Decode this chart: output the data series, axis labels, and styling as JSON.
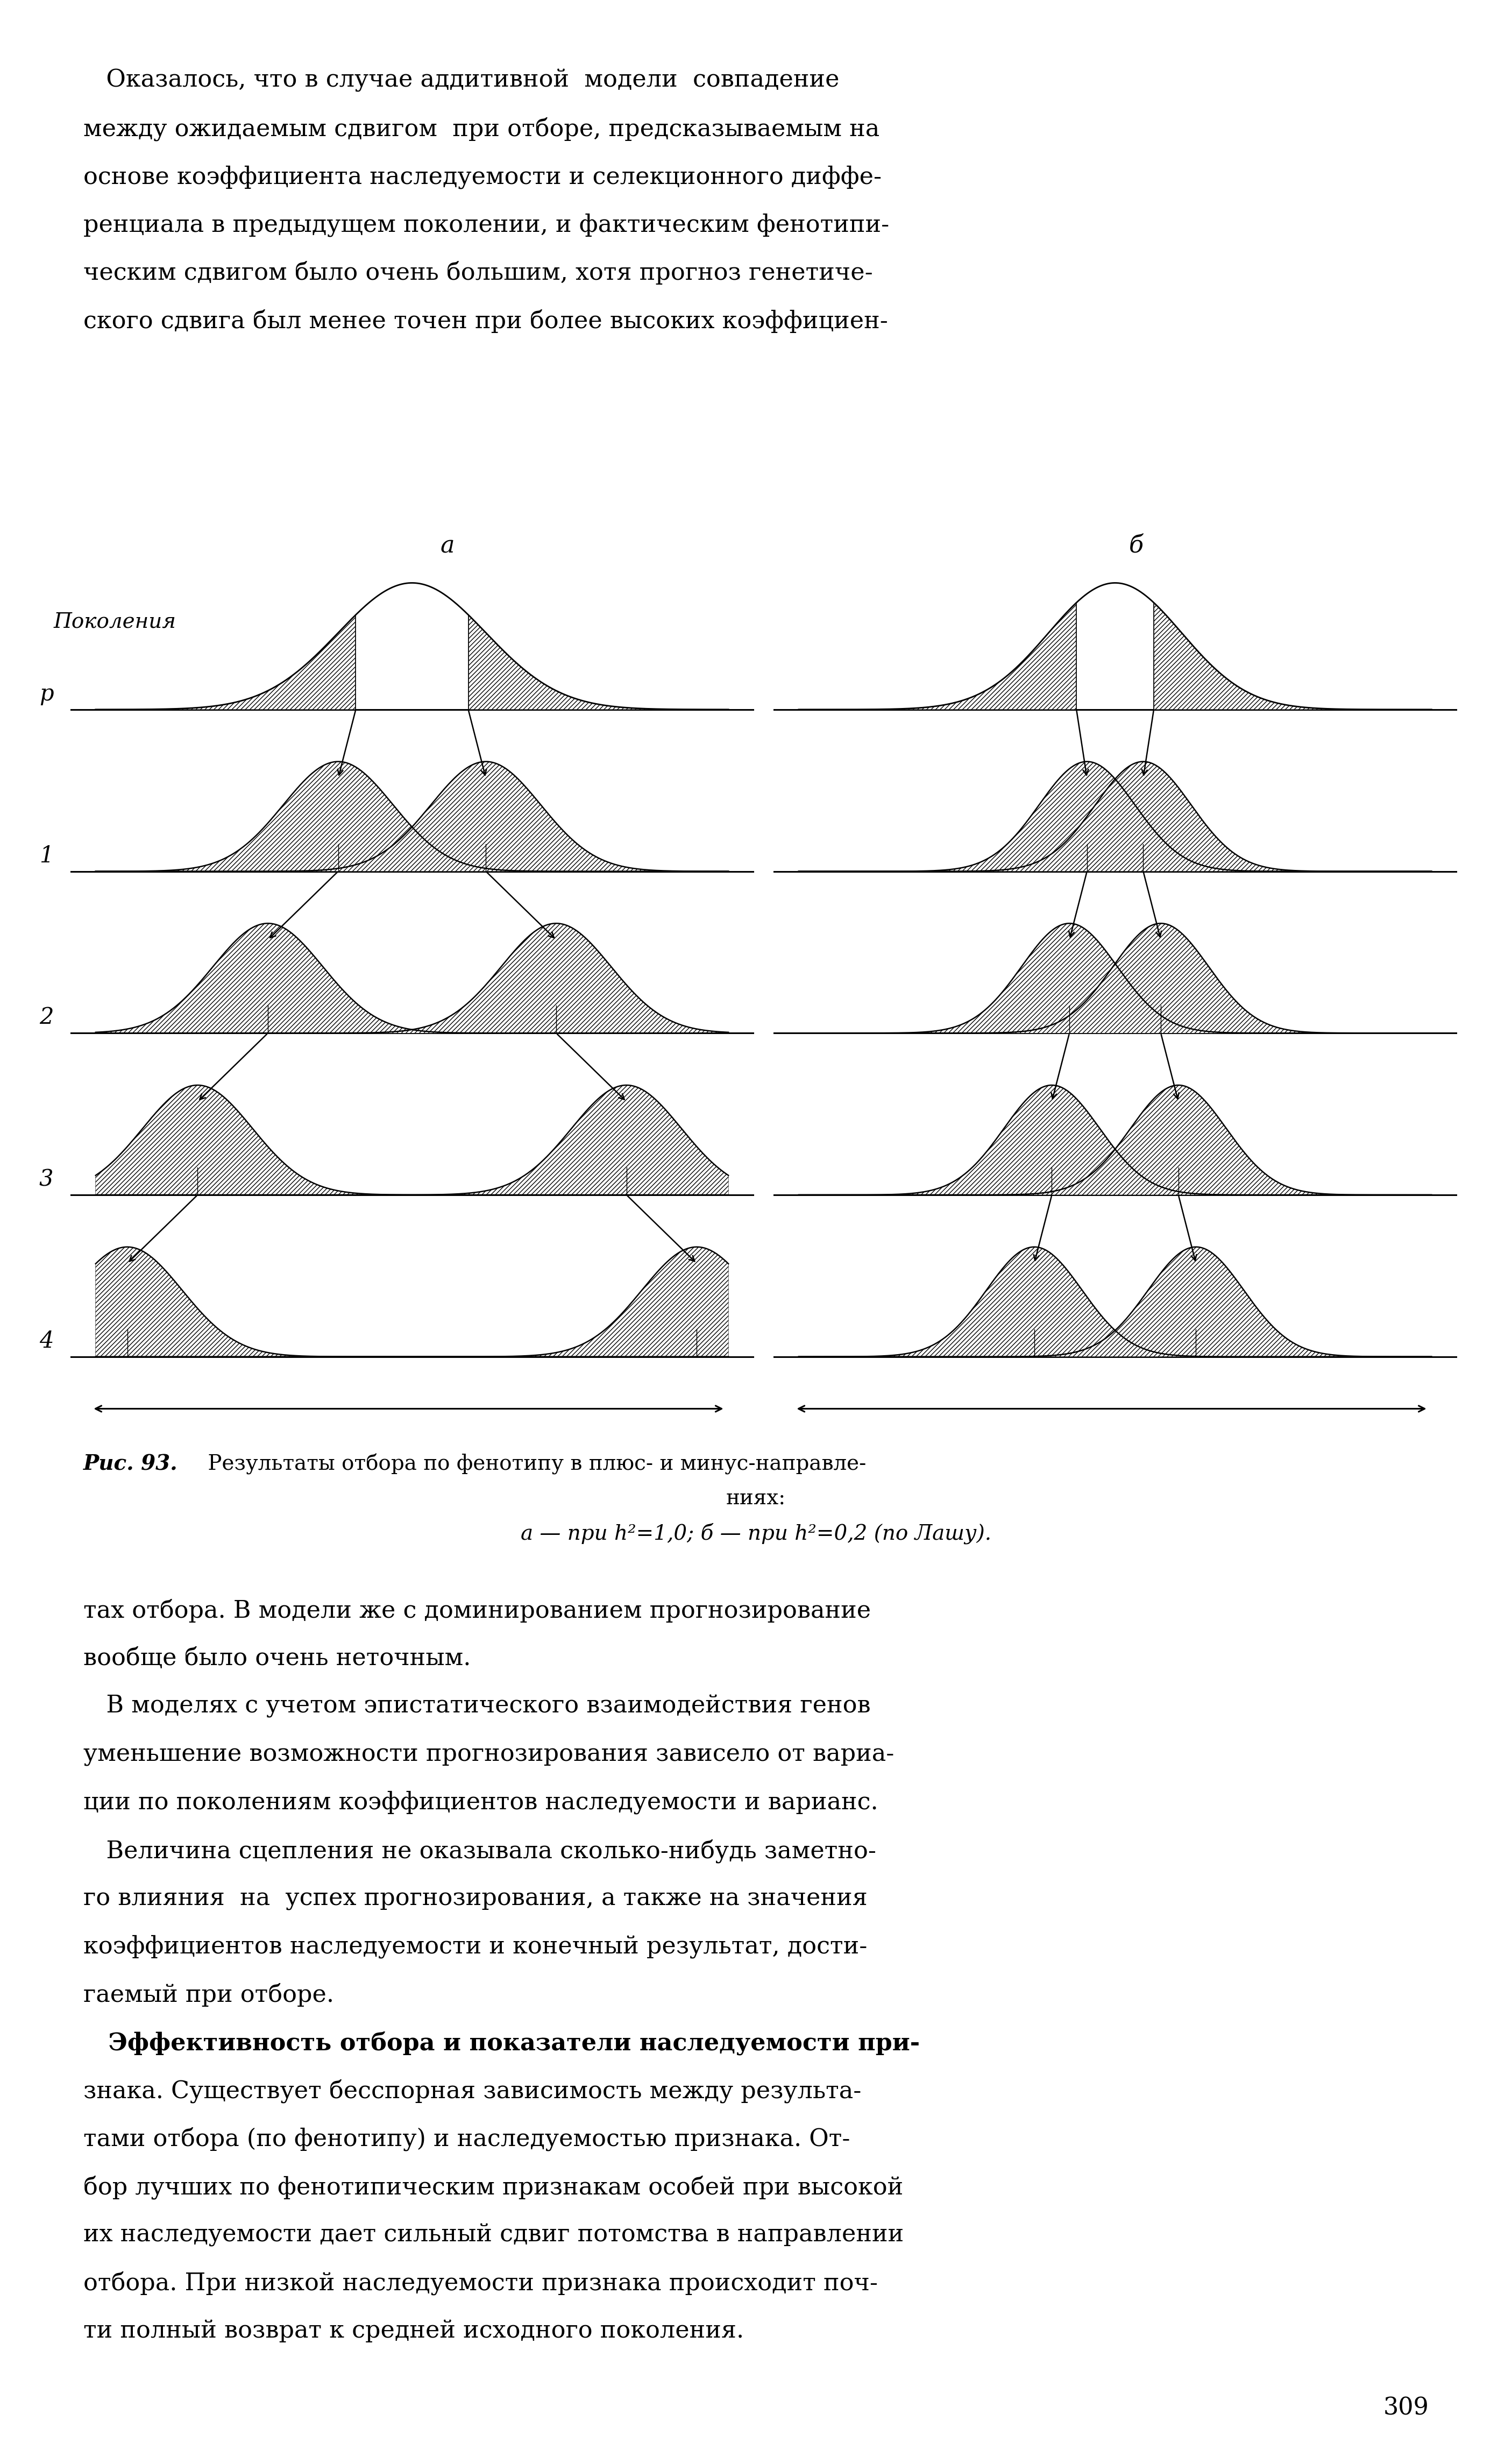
{
  "top_text_lines": [
    "   Оказалось, что в случае аддитивной  модели  совпадение",
    "между ожидаемым сдвигом  при отборе, предсказываемым на",
    "основе коэффициента наследуемости и селекционного диффе-",
    "ренциала в предыдущем поколении, и фактическим фенотипи-",
    "ческим сдвигом было очень большим, хотя прогноз генетиче-",
    "ского сдвига был менее точен при более высоких коэффициен-"
  ],
  "bottom_text_lines": [
    "тах отбора. В модели же с доминированием прогнозирование",
    "вообще было очень неточным.",
    "   В моделях с учетом эпистатического взаимодействия генов",
    "уменьшение возможности прогнозирования зависело от вариа-",
    "ции по поколениям коэффициентов наследуемости и варианс.",
    "   Величина сцепления не оказывала сколько-нибудь заметно-",
    "го влияния  на  успех прогнозирования, а также на значения",
    "коэффициентов наследуемости и конечный результат, дости-",
    "гаемый при отборе.",
    "   Эффективность отбора и показатели наследуемости при-",
    "знака. Существует бесспорная зависимость между результа-",
    "тами отбора (по фенотипу) и наследуемостью признака. От-",
    "бор лучших по фенотипическим признакам особей при высокой",
    "их наследуемости дает сильный сдвиг потомства в направлении",
    "отбора. При низкой наследуемости признака происходит поч-",
    "ти полный возврат к средней исходного поколения."
  ],
  "caption_bold": "Рис. 93.",
  "caption_rest": " Результаты отбора по фенотипу в плюс- и минус-направле-",
  "caption_line2": "ниях:",
  "caption_line3": "а — при h²=1,0; б — при h²=0,2 (по Лашу).",
  "page_number": "309",
  "label_a": "а",
  "label_b": "б",
  "label_pokoleniya": "Поколения",
  "generation_labels": [
    "р",
    "1",
    "2",
    "3",
    "4"
  ],
  "background_color": "#ffffff"
}
